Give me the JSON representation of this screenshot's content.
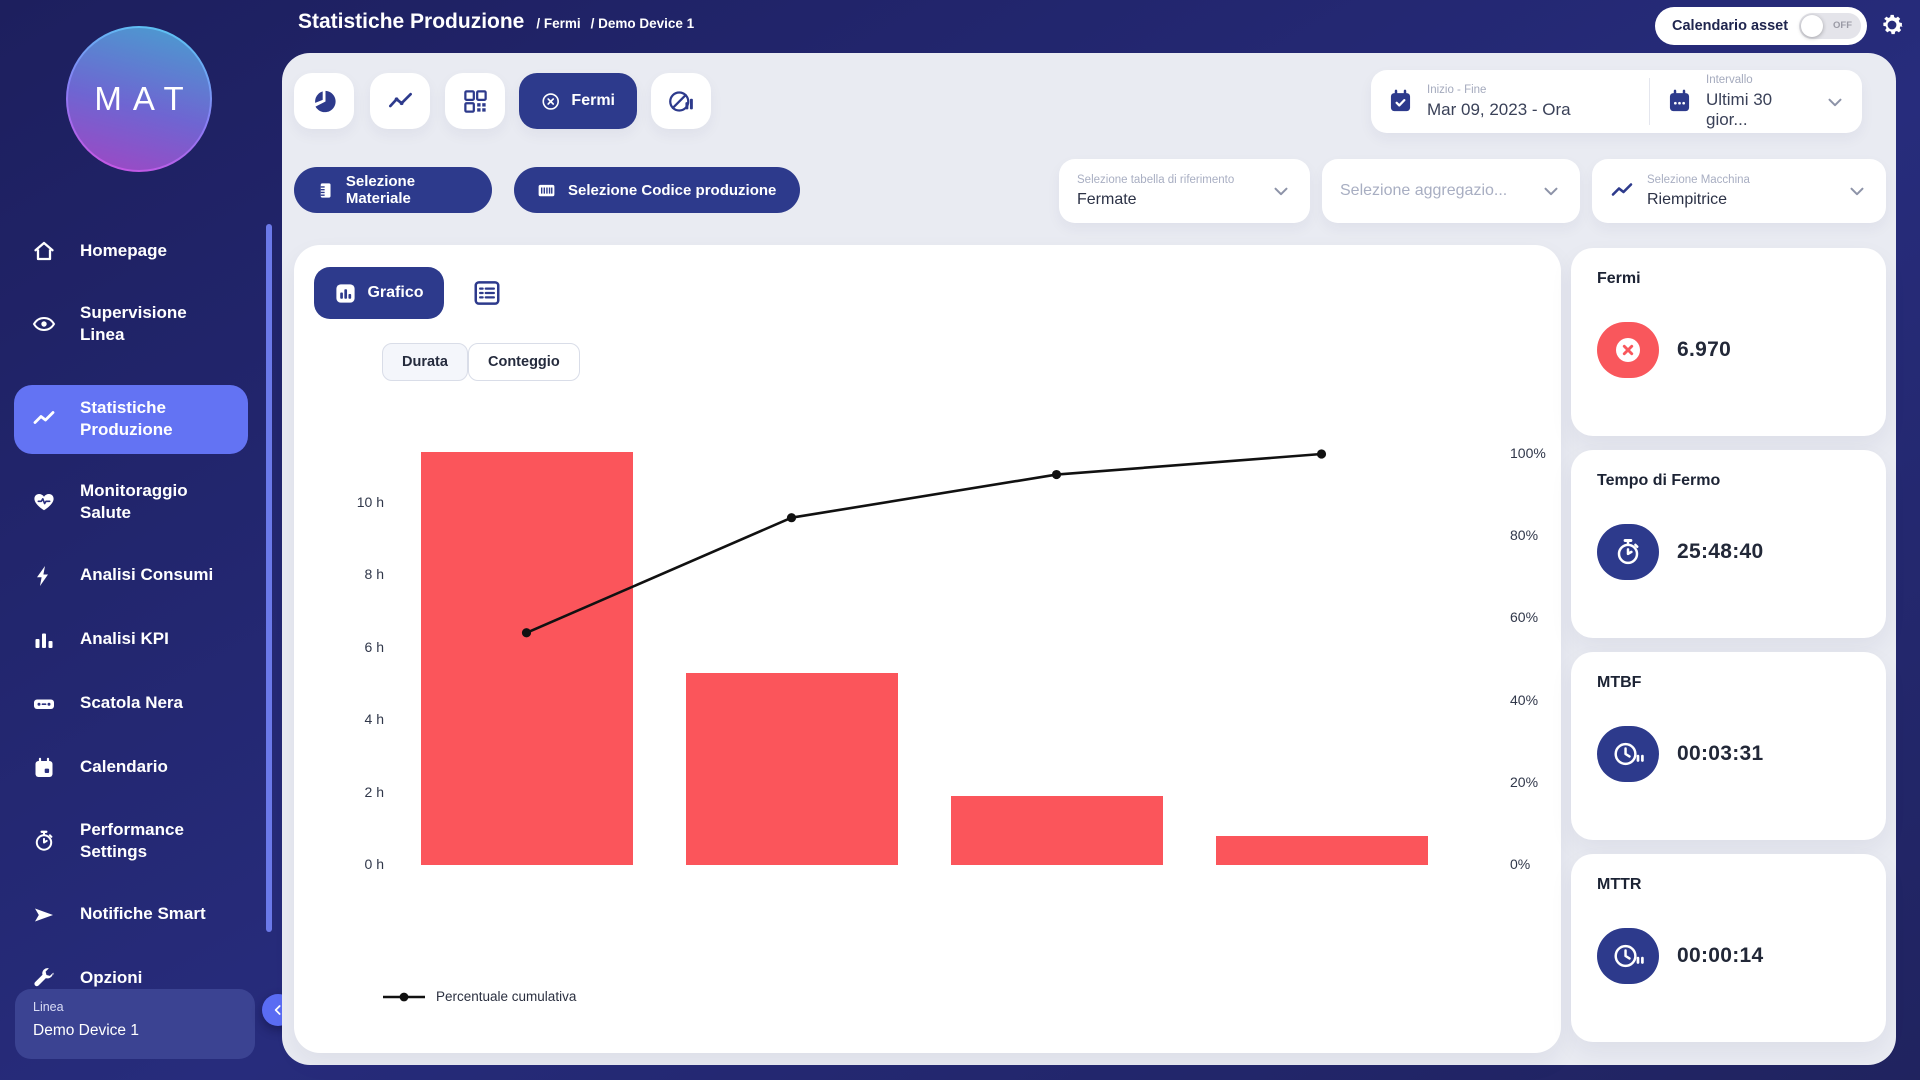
{
  "header": {
    "title": "Statistiche Produzione",
    "breadcrumb": [
      "Fermi",
      "Demo Device 1"
    ],
    "calendar_toggle": {
      "label": "Calendario asset",
      "state": "OFF"
    }
  },
  "sidebar": {
    "logo": "MAT",
    "items": [
      {
        "label": "Homepage",
        "icon": "home"
      },
      {
        "label": "Supervisione Linea",
        "icon": "eye"
      },
      {
        "label": "Statistiche Produzione",
        "icon": "trend",
        "active": true
      },
      {
        "label": "Monitoraggio Salute",
        "icon": "heart-pulse"
      },
      {
        "label": "Analisi Consumi",
        "icon": "bolt"
      },
      {
        "label": "Analisi KPI",
        "icon": "bar-chart"
      },
      {
        "label": "Scatola Nera",
        "icon": "black-box"
      },
      {
        "label": "Calendario",
        "icon": "calendar"
      },
      {
        "label": "Performance Settings",
        "icon": "stopwatch"
      },
      {
        "label": "Notifiche Smart",
        "icon": "send"
      },
      {
        "label": "Opzioni",
        "icon": "wrench"
      }
    ],
    "line_selector": {
      "label": "Linea",
      "value": "Demo Device 1"
    }
  },
  "toolbar": {
    "view_buttons": [
      {
        "name": "pie-chart"
      },
      {
        "name": "line-chart"
      },
      {
        "name": "qr-grid"
      },
      {
        "name": "fermi",
        "label": "Fermi",
        "icon": "circle-x",
        "active": true
      },
      {
        "name": "no-data"
      }
    ],
    "date_range": {
      "label": "Inizio - Fine",
      "value": "Mar 09, 2023 - Ora"
    },
    "interval": {
      "label": "Intervallo",
      "value": "Ultimi 30 gior..."
    }
  },
  "filters": {
    "material_button": "Selezione Materiale",
    "production_code_button": "Selezione Codice produzione",
    "reference_table": {
      "label": "Selezione tabella di riferimento",
      "value": "Fermate"
    },
    "aggregation": {
      "placeholder": "Selezione aggregazio..."
    },
    "machine": {
      "label": "Selezione Macchina",
      "value": "Riempitrice"
    }
  },
  "chart_panel": {
    "grafico_label": "Grafico",
    "mode_duration": "Durata",
    "mode_count": "Conteggio"
  },
  "chart_data": {
    "type": "pareto-bar-line",
    "bars": {
      "unit": "h",
      "values": [
        11.4,
        5.3,
        1.9,
        0.8
      ]
    },
    "line": {
      "name": "Percentuale cumulativa",
      "unit": "%",
      "values": [
        56.5,
        84.5,
        95,
        100
      ]
    },
    "y_left": {
      "unit": "h",
      "ticks": [
        10,
        8,
        6,
        4,
        2,
        0
      ],
      "tick_labels": [
        "10 h",
        "8 h",
        "6 h",
        "4 h",
        "2 h",
        "0 h"
      ],
      "max": 11.5
    },
    "y_right": {
      "unit": "%",
      "ticks": [
        100,
        80,
        60,
        40,
        20,
        0
      ],
      "tick_labels": [
        "100%",
        "80%",
        "60%",
        "40%",
        "20%",
        "0%"
      ],
      "range": [
        0,
        100
      ]
    },
    "legend_label": "Percentuale cumulativa",
    "grid": false,
    "bar_color": "#fb555b",
    "line_color": "#111111"
  },
  "stats_cards": [
    {
      "title": "Fermi",
      "value": "6.970",
      "icon": "stop-x",
      "icon_color": "#f9575c"
    },
    {
      "title": "Tempo di Fermo",
      "value": "25:48:40",
      "icon": "stopwatch",
      "icon_color": "#2d3a8c"
    },
    {
      "title": "MTBF",
      "value": "00:03:31",
      "icon": "clock-pause",
      "icon_color": "#2d3a8c"
    },
    {
      "title": "MTTR",
      "value": "00:00:14",
      "icon": "clock-pause",
      "icon_color": "#2d3a8c"
    }
  ],
  "colors": {
    "background_navy": "#232875",
    "accent_navy": "#2d3a8c",
    "active_nav": "#6373f3",
    "content_bg": "#e9ebf2",
    "bar_red": "#fb555b",
    "label_gray": "#a8aec2"
  }
}
